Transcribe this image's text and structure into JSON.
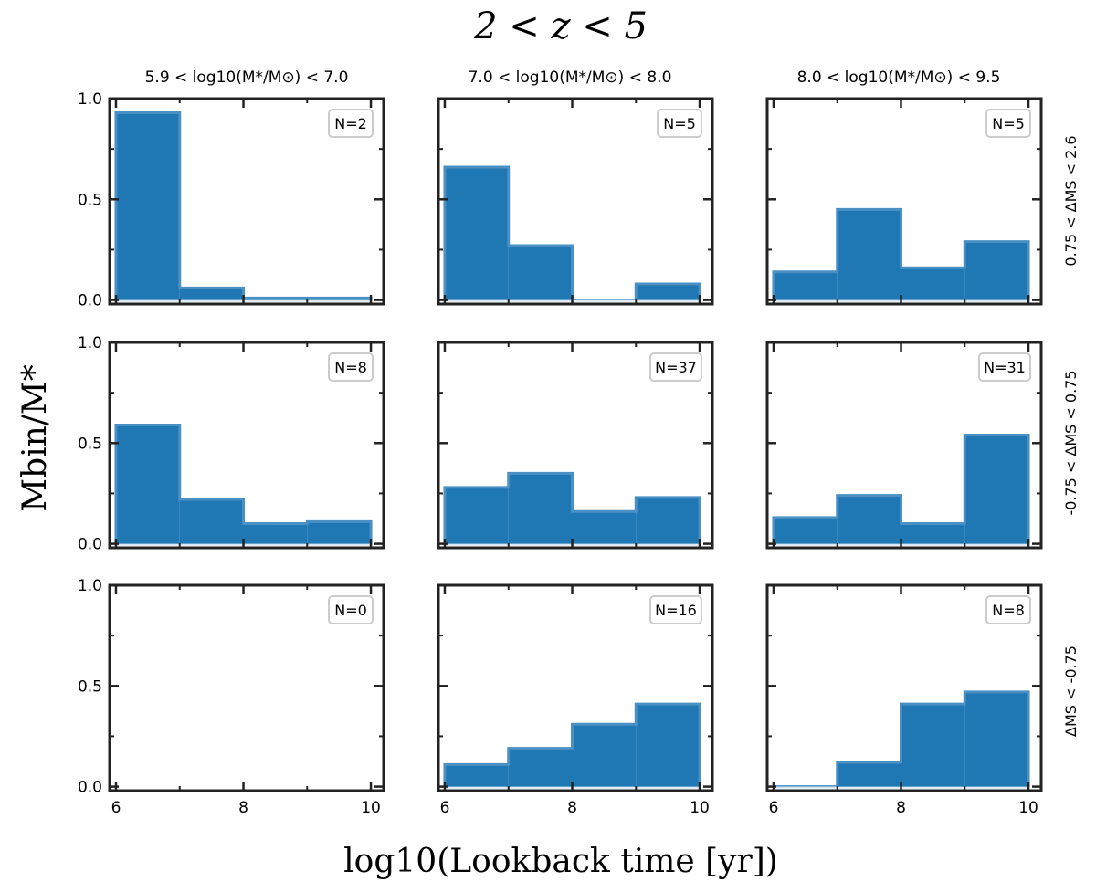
{
  "figure": {
    "title": "2 < z < 5",
    "xlabel": "log10(Lookback time [yr])",
    "ylabel": "Mbin/M*"
  },
  "columns": [
    {
      "label": "5.9 < log10(M*/M⊙) < 7.0"
    },
    {
      "label": "7.0 < log10(M*/M⊙) < 8.0"
    },
    {
      "label": "8.0 < log10(M*/M⊙) < 9.5"
    }
  ],
  "rows": [
    {
      "label": "0.75 < ΔMS < 2.6"
    },
    {
      "label": "-0.75 < ΔMS < 0.75"
    },
    {
      "label": "ΔMS < -0.75"
    }
  ],
  "colors": {
    "fill": "#1f77b4",
    "edge": "#4a90c4",
    "axes": "#222222",
    "legend_border": "#cccccc"
  },
  "chart_data": {
    "type": "bar",
    "x_bin_edges": [
      6,
      7,
      8,
      9,
      10
    ],
    "xticks": [
      6,
      8,
      10
    ],
    "yticks": [
      0.0,
      0.5,
      1.0
    ],
    "xlim": [
      5.9,
      10.2
    ],
    "ylim": [
      -0.02,
      1.0
    ],
    "grid": false,
    "legend": "top-right",
    "panels": [
      {
        "row": 0,
        "col": 0,
        "n_label": "N=2",
        "values": [
          0.93,
          0.06,
          0.01,
          0.01
        ]
      },
      {
        "row": 0,
        "col": 1,
        "n_label": "N=5",
        "values": [
          0.66,
          0.27,
          0.0,
          0.08
        ]
      },
      {
        "row": 0,
        "col": 2,
        "n_label": "N=5",
        "values": [
          0.14,
          0.45,
          0.16,
          0.29
        ]
      },
      {
        "row": 1,
        "col": 0,
        "n_label": "N=8",
        "values": [
          0.59,
          0.22,
          0.1,
          0.11
        ]
      },
      {
        "row": 1,
        "col": 1,
        "n_label": "N=37",
        "values": [
          0.28,
          0.35,
          0.16,
          0.23
        ]
      },
      {
        "row": 1,
        "col": 2,
        "n_label": "N=31",
        "values": [
          0.13,
          0.24,
          0.1,
          0.54
        ]
      },
      {
        "row": 2,
        "col": 0,
        "n_label": "N=0",
        "values": [
          0,
          0,
          0,
          0
        ]
      },
      {
        "row": 2,
        "col": 1,
        "n_label": "N=16",
        "values": [
          0.11,
          0.19,
          0.31,
          0.41
        ]
      },
      {
        "row": 2,
        "col": 2,
        "n_label": "N=8",
        "values": [
          0.0,
          0.12,
          0.41,
          0.47
        ]
      }
    ]
  }
}
